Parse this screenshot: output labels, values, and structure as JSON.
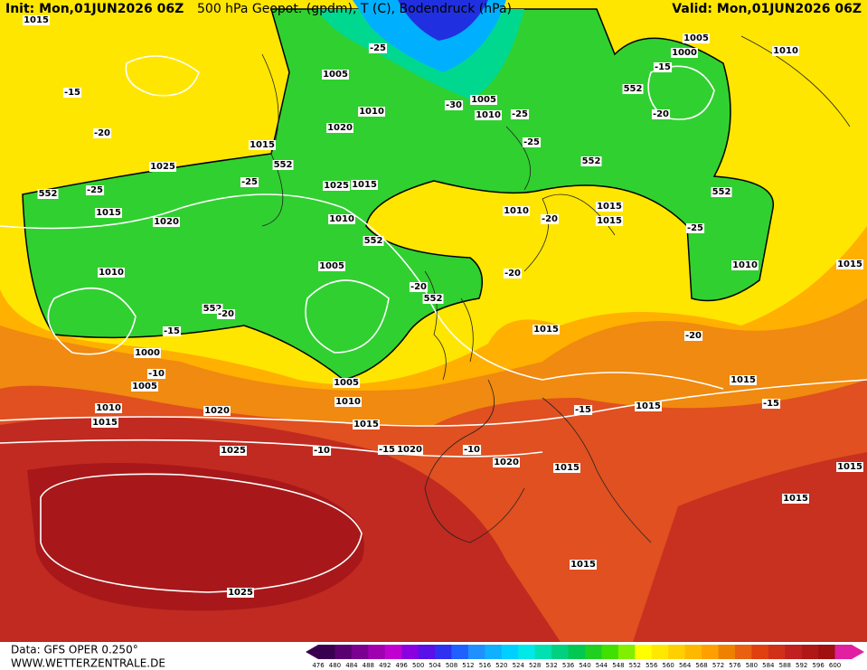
{
  "header": {
    "init": "Init: Mon,01JUN2026 06Z",
    "title": "500 hPa Geopot. (gpdm), T (C), Bodendruck (hPa)",
    "valid": "Valid: Mon,01JUN2026 06Z"
  },
  "footer": {
    "data": "Data: GFS OPER 0.250°",
    "site": "WWW.WETTERZENTRALE.DE"
  },
  "colorbar": {
    "labels": [
      476,
      480,
      484,
      488,
      492,
      496,
      500,
      504,
      508,
      512,
      516,
      520,
      524,
      528,
      532,
      536,
      540,
      544,
      548,
      552,
      556,
      560,
      564,
      568,
      572,
      576,
      580,
      584,
      588,
      592,
      596,
      600
    ],
    "colors": [
      "#3a0050",
      "#5a0070",
      "#7a0090",
      "#a000b0",
      "#c000d0",
      "#8a00e0",
      "#5a10e8",
      "#3030f0",
      "#2060ff",
      "#2090ff",
      "#10b0ff",
      "#00d0ff",
      "#00e8e8",
      "#00e0b0",
      "#00d080",
      "#00c850",
      "#20d020",
      "#40e000",
      "#80f000",
      "#ffff00",
      "#ffe800",
      "#ffd000",
      "#ffb800",
      "#ffa000",
      "#f08000",
      "#e86010",
      "#e04010",
      "#d03018",
      "#c02020",
      "#b01818",
      "#a01010",
      "#e020a0"
    ]
  },
  "contour_labels": [
    "1015",
    "1005",
    "1000",
    "1010",
    "-15",
    "-20",
    "1025",
    "1015",
    "552",
    "1005",
    "-25",
    "1010",
    "1020",
    "-30",
    "1005",
    "1010",
    "-25",
    "-25",
    "552",
    "552",
    "-15",
    "-20",
    "552",
    "-25",
    "1015",
    "1020",
    "-25",
    "1025",
    "1015",
    "1010",
    "552",
    "1010",
    "-20",
    "1015",
    "1015",
    "-25",
    "552",
    "1010",
    "1005",
    "-20",
    "552",
    "-20",
    "1010",
    "1015",
    "552",
    "-20",
    "-15",
    "1000",
    "-10",
    "1005",
    "1015",
    "-20",
    "1005",
    "1010",
    "1015",
    "1010",
    "1020",
    "1015",
    "1015",
    "-15",
    "1015",
    "-15",
    "1025",
    "-10",
    "-15",
    "1020",
    "-10",
    "1020",
    "1015",
    "1015",
    "1015",
    "1015",
    "1025"
  ]
}
